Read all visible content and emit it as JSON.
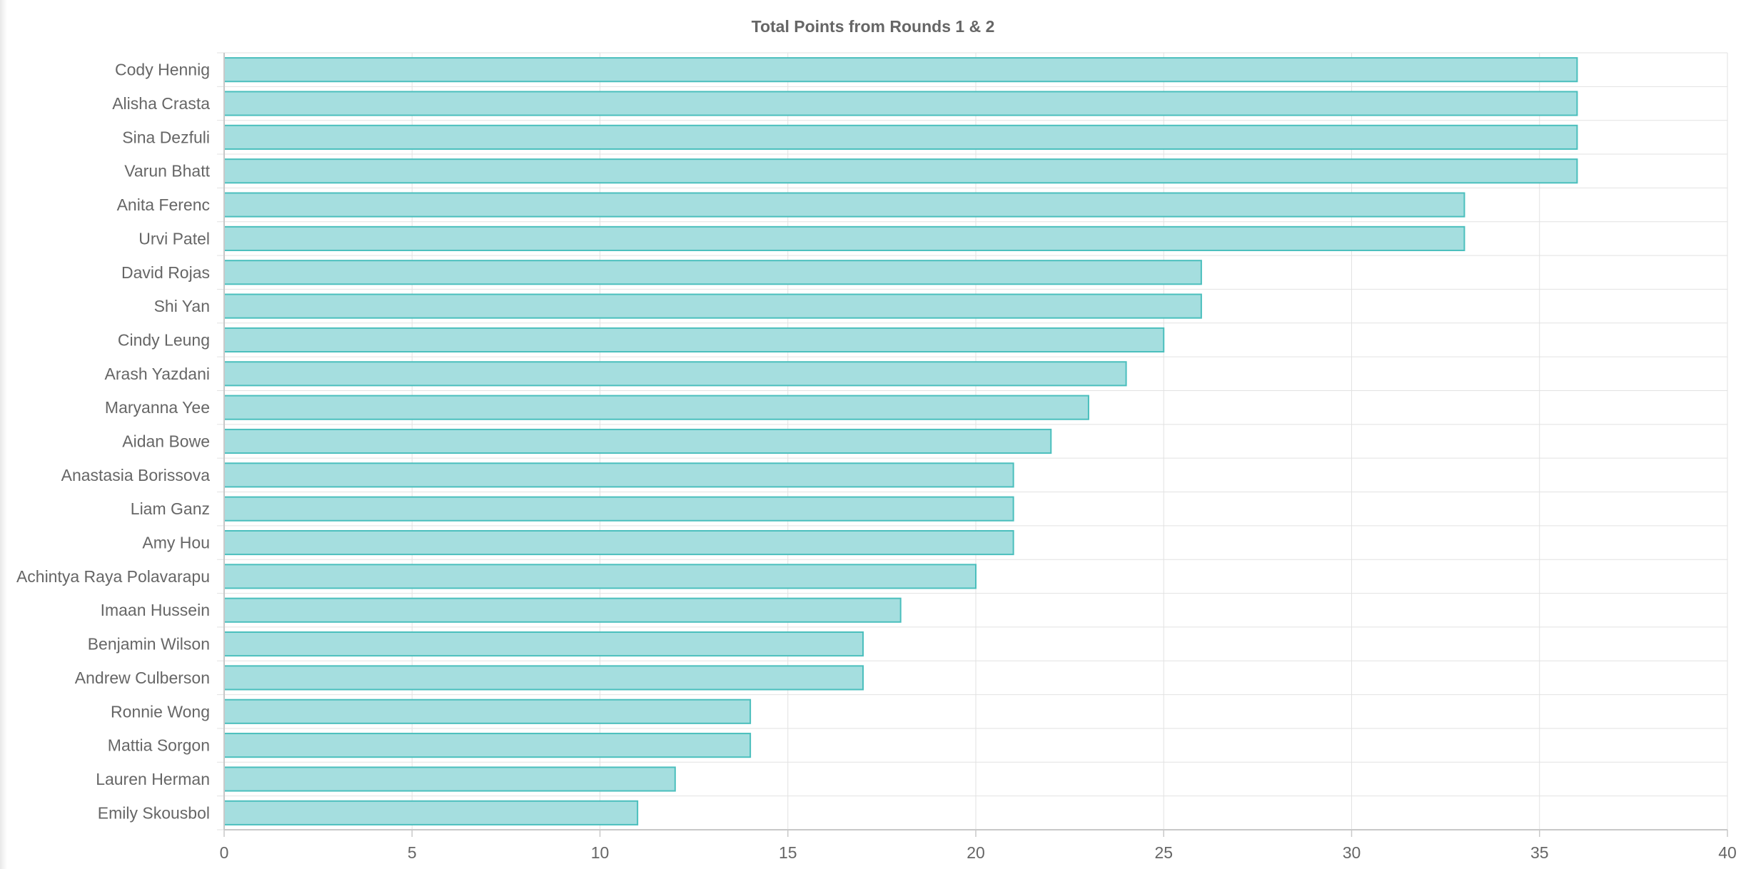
{
  "chart_data": {
    "type": "bar",
    "orientation": "horizontal",
    "title": "Total Points from Rounds 1 & 2",
    "categories": [
      "Cody Hennig",
      "Alisha Crasta",
      "Sina Dezfuli",
      "Varun Bhatt",
      "Anita Ferenc",
      "Urvi Patel",
      "David Rojas",
      "Shi Yan",
      "Cindy Leung",
      "Arash Yazdani",
      "Maryanna Yee",
      "Aidan Bowe",
      "Anastasia Borissova",
      "Liam Ganz",
      "Amy Hou",
      "Achintya Raya Polavarapu",
      "Imaan Hussein",
      "Benjamin Wilson",
      "Andrew Culberson",
      "Ronnie Wong",
      "Mattia Sorgon",
      "Lauren Herman",
      "Emily Skousbol"
    ],
    "values": [
      36,
      36,
      36,
      36,
      33,
      33,
      26,
      26,
      25,
      24,
      23,
      22,
      21,
      21,
      21,
      20,
      18,
      17,
      17,
      14,
      14,
      12,
      11
    ],
    "xlim": [
      0,
      40
    ],
    "xticks": [
      0,
      5,
      10,
      15,
      20,
      25,
      30,
      35,
      40
    ],
    "xlabel": "",
    "ylabel": "",
    "grid": true,
    "bar_fill": "#a5dedf",
    "bar_border": "#4bbfbd",
    "grid_color": "#e2e2e2",
    "axis_color": "#c8c8c8"
  }
}
